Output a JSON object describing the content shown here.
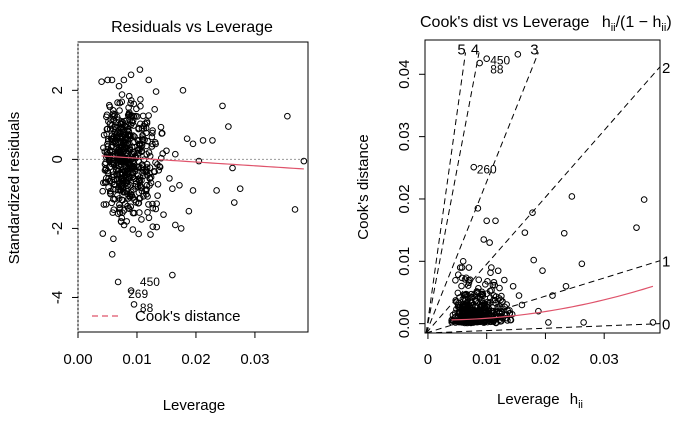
{
  "chart_data": [
    {
      "type": "scatter",
      "title": "Residuals vs Leverage",
      "xlabel": "Leverage",
      "ylabel": "Standardized residuals",
      "xlim": [
        0,
        0.039
      ],
      "ylim": [
        -5,
        3.4
      ],
      "xticks": [
        "0.00",
        "0.01",
        "0.02",
        "0.03"
      ],
      "xtick_values": [
        0,
        0.01,
        0.02,
        0.03
      ],
      "yticks": [
        "2",
        "0",
        "-2",
        "-4"
      ],
      "ytick_values": [
        2,
        0,
        -2,
        -4
      ],
      "grid": false,
      "legend": {
        "placement": "bottom-left",
        "entries": [
          {
            "name": "Cook's distance",
            "color": "#df536b",
            "style": "dashed"
          }
        ]
      },
      "smooth_color": "#df536b",
      "annotations": [
        {
          "label": "450",
          "x": 0.0105,
          "y": -3.55
        },
        {
          "label": "269",
          "x": 0.0085,
          "y": -3.9
        },
        {
          "label": "88",
          "x": 0.0105,
          "y": -4.3
        }
      ],
      "points": [
        {
          "x": 0.0068,
          "y": -3.55
        },
        {
          "x": 0.009,
          "y": -3.8
        },
        {
          "x": 0.0095,
          "y": -4.2
        },
        {
          "x": 0.016,
          "y": -3.35
        },
        {
          "x": 0.0383,
          "y": -0.05
        },
        {
          "x": 0.0368,
          "y": -1.45
        },
        {
          "x": 0.0355,
          "y": 1.25
        },
        {
          "x": 0.0245,
          "y": 1.55
        },
        {
          "x": 0.0255,
          "y": 0.95
        },
        {
          "x": 0.0262,
          "y": -0.25
        },
        {
          "x": 0.0265,
          "y": -1.25
        },
        {
          "x": 0.0275,
          "y": -0.85
        },
        {
          "x": 0.0235,
          "y": -0.9
        },
        {
          "x": 0.0228,
          "y": 0.55
        },
        {
          "x": 0.0178,
          "y": 2.0
        },
        {
          "x": 0.0185,
          "y": 0.6
        },
        {
          "x": 0.0172,
          "y": -0.75
        },
        {
          "x": 0.0188,
          "y": -1.5
        },
        {
          "x": 0.0175,
          "y": -2.0
        },
        {
          "x": 0.0195,
          "y": 0.45
        },
        {
          "x": 0.0205,
          "y": -0.05
        },
        {
          "x": 0.0212,
          "y": 0.55
        },
        {
          "x": 0.0165,
          "y": -1.9
        },
        {
          "x": 0.0195,
          "y": -0.9
        },
        {
          "x": 0.0105,
          "y": 2.6
        },
        {
          "x": 0.009,
          "y": 2.45
        },
        {
          "x": 0.012,
          "y": 2.3
        },
        {
          "x": 0.004,
          "y": 2.25
        },
        {
          "x": 0.0042,
          "y": -2.15
        },
        {
          "x": 0.006,
          "y": -2.3
        },
        {
          "x": 0.0058,
          "y": -2.75
        },
        {
          "x": 0.0142,
          "y": 0.75
        },
        {
          "x": 0.015,
          "y": 0.25
        },
        {
          "x": 0.0155,
          "y": -0.55
        },
        {
          "x": 0.016,
          "y": -0.85
        },
        {
          "x": 0.0135,
          "y": -1.05
        },
        {
          "x": 0.0145,
          "y": -1.6
        },
        {
          "x": 0.013,
          "y": 1.45
        },
        {
          "x": 0.0165,
          "y": 0.15
        }
      ]
    },
    {
      "type": "scatter",
      "title": "Cook's dist vs Leverage",
      "title_math": "h",
      "title_math_sub": "ii",
      "title_math_mid": "/(1 − h",
      "title_math_sub2": "ii",
      "title_math_end": ")",
      "xlabel": "Leverage",
      "xlabel_math": "h",
      "xlabel_math_sub": "ii",
      "ylabel": "Cook's distance",
      "xlim": [
        -0.0005,
        0.0395
      ],
      "ylim": [
        -0.0015,
        0.0455
      ],
      "xticks": [
        "0",
        "0.01",
        "0.02",
        "0.03"
      ],
      "xtick_values": [
        0,
        0.01,
        0.02,
        0.03
      ],
      "yticks": [
        "0.00",
        "0.01",
        "0.02",
        "0.03",
        "0.04"
      ],
      "ytick_values": [
        0,
        0.01,
        0.02,
        0.03,
        0.04
      ],
      "grid": false,
      "contour_labels": [
        "5",
        "4",
        "3",
        "2",
        "1",
        "0"
      ],
      "contour_values": [
        5,
        4,
        3,
        2,
        1,
        0
      ],
      "annotations": [
        {
          "label": "450",
          "x": 0.0106,
          "y": 0.0422
        },
        {
          "label": "88",
          "x": 0.0106,
          "y": 0.0408
        },
        {
          "label": "260",
          "x": 0.0083,
          "y": 0.0247
        }
      ],
      "points": [
        {
          "x": 0.0088,
          "y": 0.0418
        },
        {
          "x": 0.01,
          "y": 0.0425
        },
        {
          "x": 0.0153,
          "y": 0.0432
        },
        {
          "x": 0.0078,
          "y": 0.0251
        },
        {
          "x": 0.0383,
          "y": 0.0002
        },
        {
          "x": 0.0368,
          "y": 0.0199
        },
        {
          "x": 0.0355,
          "y": 0.0154
        },
        {
          "x": 0.0245,
          "y": 0.0204
        },
        {
          "x": 0.0262,
          "y": 0.0096
        },
        {
          "x": 0.0265,
          "y": 0.0002
        },
        {
          "x": 0.0235,
          "y": 0.006
        },
        {
          "x": 0.0232,
          "y": 0.0145
        },
        {
          "x": 0.0178,
          "y": 0.0178
        },
        {
          "x": 0.018,
          "y": 0.0102
        },
        {
          "x": 0.0165,
          "y": 0.0146
        },
        {
          "x": 0.0195,
          "y": 0.0085
        },
        {
          "x": 0.0205,
          "y": 0.0002
        },
        {
          "x": 0.0212,
          "y": 0.0045
        },
        {
          "x": 0.0188,
          "y": 0.002
        },
        {
          "x": 0.01,
          "y": 0.0165
        },
        {
          "x": 0.0115,
          "y": 0.0165
        },
        {
          "x": 0.0095,
          "y": 0.0135
        },
        {
          "x": 0.0105,
          "y": 0.013
        },
        {
          "x": 0.0085,
          "y": 0.0185
        },
        {
          "x": 0.006,
          "y": 0.01
        },
        {
          "x": 0.0058,
          "y": 0.009
        },
        {
          "x": 0.0145,
          "y": 0.006
        },
        {
          "x": 0.0155,
          "y": 0.0045
        },
        {
          "x": 0.013,
          "y": 0.007
        },
        {
          "x": 0.016,
          "y": 0.003
        }
      ]
    }
  ]
}
